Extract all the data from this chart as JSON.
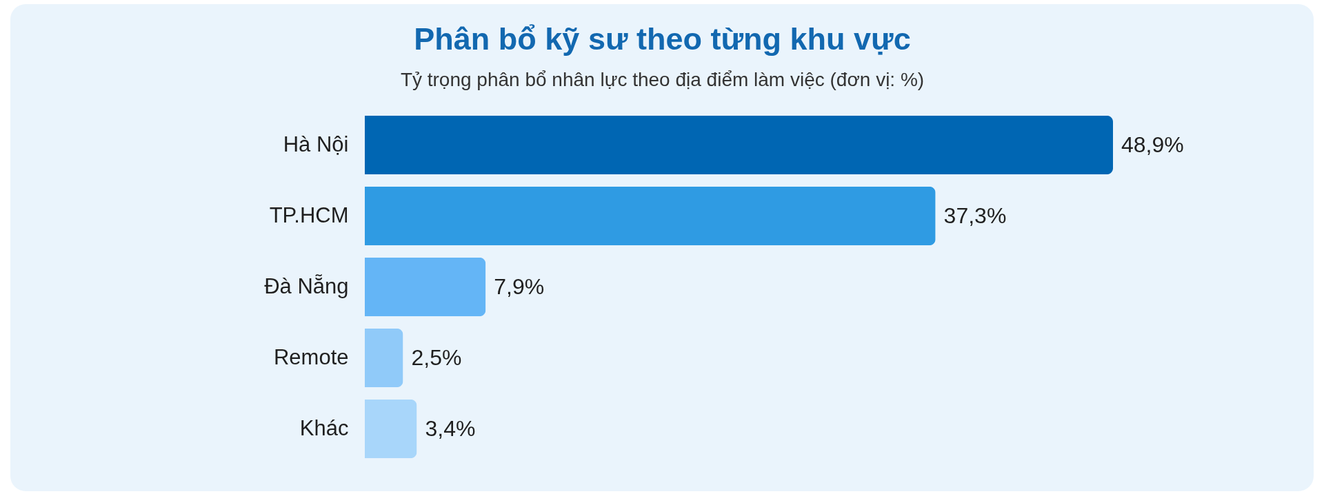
{
  "chart_data": {
    "type": "bar",
    "orientation": "horizontal",
    "title": "Phân bổ kỹ sư theo từng khu vực",
    "subtitle": "Tỷ trọng phân bổ nhân lực theo địa điểm làm việc (đơn vị: %)",
    "categories": [
      "Hà Nội",
      "TP.HCM",
      "Đà Nẵng",
      "Remote",
      "Khác"
    ],
    "values": [
      48.9,
      37.3,
      7.9,
      2.5,
      3.4
    ],
    "colors": [
      "#0066b3",
      "#2f9be3",
      "#64b5f6",
      "#90caf9",
      "#a8d6fa"
    ],
    "value_labels": [
      "48,9%",
      "37,3%",
      "7,9%",
      "2,5%",
      "3,4%"
    ],
    "tick_labels": "y"
  }
}
